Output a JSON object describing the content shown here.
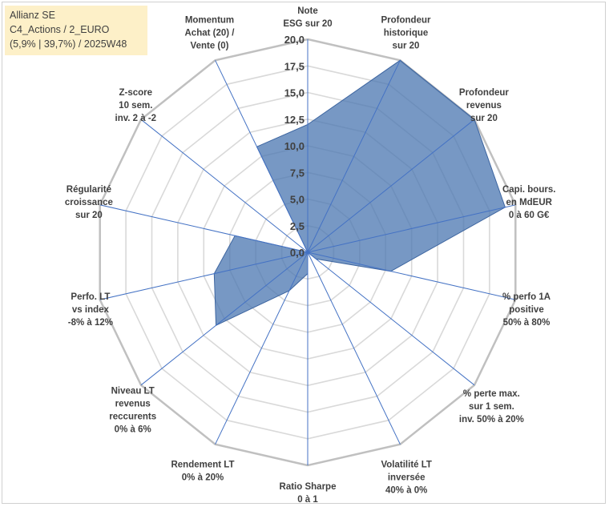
{
  "title_box": {
    "line1": "Allianz SE",
    "line2": "C4_Actions / 2_EURO",
    "line3": "(5,9% | 39,7%) / 2025W48",
    "background": "#fdf0c8"
  },
  "chart_data": {
    "type": "radar",
    "rmin": 0,
    "rmax": 20,
    "tick_labels": [
      "0,0",
      "2,5",
      "5,0",
      "7,5",
      "10,0",
      "12,5",
      "15,0",
      "17,5",
      "20,0"
    ],
    "categories": [
      [
        "Note",
        "ESG sur 20"
      ],
      [
        "Profondeur",
        "historique",
        "sur 20"
      ],
      [
        "Profondeur",
        "revenus",
        "sur 20"
      ],
      [
        "Capi. bours.",
        "en MdEUR",
        "0 à 60 G€"
      ],
      [
        "% perfo 1A",
        "positive",
        "50% à 80%"
      ],
      [
        "% perte max.",
        "sur 1 sem.",
        "inv. 50% à 20%"
      ],
      [
        "Volatilité LT",
        "inversée",
        "40% à 0%"
      ],
      [
        "Ratio Sharpe",
        "0 à 1"
      ],
      [
        "Rendement LT",
        "0% à 20%"
      ],
      [
        "Niveau LT",
        "revenus",
        "reccurents",
        "0% à 6%"
      ],
      [
        "Perfo. LT",
        "vs index",
        "-8% à 12%"
      ],
      [
        "Régularité",
        "croissance",
        "sur 20"
      ],
      [
        "Z-score",
        "10 sem.",
        "inv. 2 à -2"
      ],
      [
        "Momentum",
        "Achat (20) /",
        "Vente (0)"
      ]
    ],
    "series": [
      {
        "name": "Allianz SE",
        "values": [
          12,
          20,
          20,
          19,
          8,
          1,
          0,
          2,
          4,
          11,
          9,
          7,
          0,
          11
        ],
        "fill": "#4a76b0",
        "fill_opacity": 0.75,
        "stroke": "#3d65a0"
      }
    ],
    "grid_color": "#d9d9d9",
    "outer_color": "#c0c0c0",
    "axis_color": "#4472c4",
    "legend": "none"
  }
}
